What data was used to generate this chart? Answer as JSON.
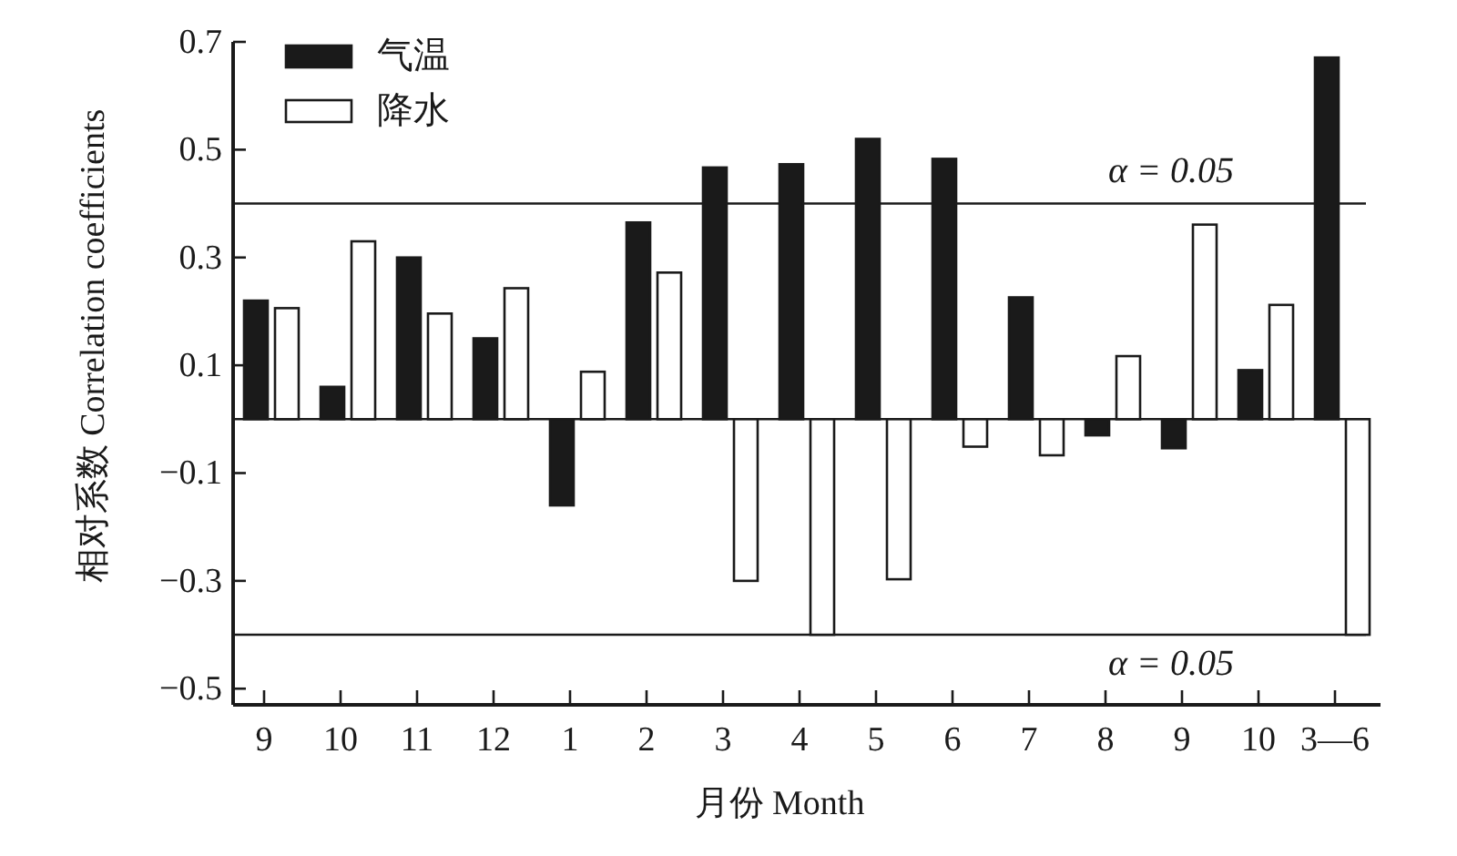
{
  "chart_data": {
    "type": "bar",
    "xlabel": "月份 Month",
    "ylabel": "相对系数 Correlation coefficients",
    "categories": [
      "9",
      "10",
      "11",
      "12",
      "1",
      "2",
      "3",
      "4",
      "5",
      "6",
      "7",
      "8",
      "9",
      "10",
      "3—6"
    ],
    "series": [
      {
        "name": "气温",
        "color": "#1a1a1a",
        "values": [
          0.22,
          0.06,
          0.3,
          0.15,
          -0.16,
          0.365,
          0.467,
          0.473,
          0.52,
          0.483,
          0.226,
          -0.03,
          -0.054,
          0.091,
          0.671
        ]
      },
      {
        "name": "降水",
        "color": "#ffffff",
        "values": [
          0.206,
          0.33,
          0.196,
          0.243,
          0.088,
          0.272,
          -0.3,
          -0.4,
          -0.297,
          -0.051,
          -0.067,
          0.117,
          0.361,
          0.212,
          -0.4
        ]
      }
    ],
    "ylim": [
      -0.53,
      0.7
    ],
    "yticks": [
      {
        "value": -0.5,
        "label": "−0.5"
      },
      {
        "value": -0.3,
        "label": "−0.3"
      },
      {
        "value": -0.1,
        "label": "−0.1"
      },
      0.1,
      0.3,
      0.5,
      0.7
    ],
    "ref_lines": [
      {
        "axis": "y",
        "value": 0.4
      },
      {
        "axis": "y",
        "value": -0.4
      }
    ],
    "annotations": [
      "α = 0.05",
      "α = 0.05"
    ],
    "legend": "top left"
  }
}
